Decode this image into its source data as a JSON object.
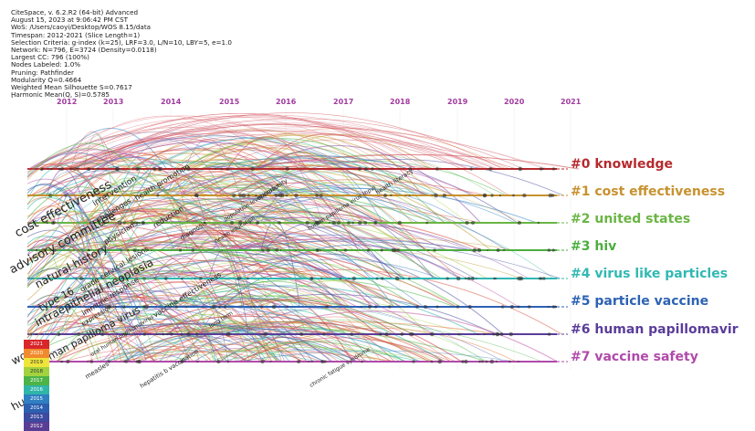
{
  "info_lines": [
    "CiteSpace, v. 6.2.R2 (64-bit) Advanced",
    "August 15, 2023 at 9:06:42 PM CST",
    "WoS: /Users/caoyi/Desktop/WOS 8.15/data",
    "Timespan: 2012-2021 (Slice Length=1)",
    "Selection Criteria: g-index (k=25), LRF=3.0, L/N=10, LBY=5, e=1.0",
    "Network: N=796, E=3724 (Density=0.0118)",
    "Largest CC: 796 (100%)",
    "Nodes Labeled: 1.0%",
    "Pruning: Pathfinder",
    "Modularity Q=0.4664",
    "Weighted Mean Silhouette S=0.7617",
    "Harmonic Mean(Q, S)=0.5785"
  ],
  "dot": ".",
  "years": [
    "2012",
    "2013",
    "2014",
    "2015",
    "2016",
    "2017",
    "2018",
    "2019",
    "2020",
    "2021"
  ],
  "clusters": [
    {
      "label": "#0 knowledge",
      "color": "#b52a2e"
    },
    {
      "label": "#1 cost effectiveness",
      "color": "#c7922f"
    },
    {
      "label": "#2 united states",
      "color": "#6ab544"
    },
    {
      "label": "#3 hiv",
      "color": "#4cae3f"
    },
    {
      "label": "#4 virus like particles",
      "color": "#31b8b3"
    },
    {
      "label": "#5 particle vaccine",
      "color": "#2d62b4"
    },
    {
      "label": "#6 human papillomavir",
      "color": "#5a3d9a"
    },
    {
      "label": "#7 vaccine safety",
      "color": "#b04aaa"
    }
  ],
  "big_labels": [
    "cost effectiveness",
    "advisory committee",
    "natural history",
    "type 16",
    "intraepithelial neoplasia",
    "women",
    "human papilloma virus",
    "hu"
  ],
  "mid_labels": [
    "intervention",
    "challenges",
    "physicians",
    "health promotion",
    "reduction",
    "diagnosis",
    "grade cervical lesions",
    "immune response",
    "expression",
    "vaccine effectiveness",
    "oral human papillomavirus",
    "long term",
    "measles",
    "hepatitis b vaccination",
    "chronic fatigue syndrome",
    "opportunity",
    "human papilloma virus (hpv)",
    "health literacy",
    "health education",
    "population-level impact"
  ],
  "legend": [
    "2021",
    "2020",
    "2019",
    "2018",
    "2017",
    "2016",
    "2015",
    "2014",
    "2013",
    "2012"
  ],
  "legend_colors": [
    "#d8262b",
    "#f08a2a",
    "#efe53a",
    "#a3d23f",
    "#4cb346",
    "#30b5a9",
    "#2f7fc1",
    "#2c5fb0",
    "#3c4a9f",
    "#5a3d94"
  ]
}
